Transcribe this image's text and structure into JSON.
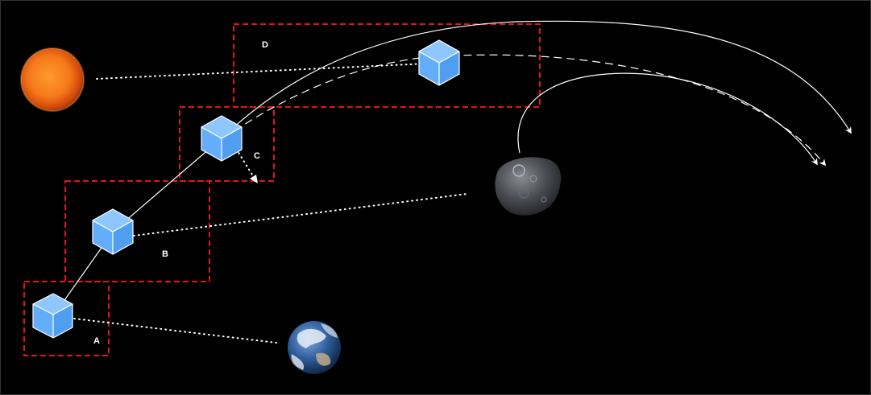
{
  "regions": [
    {
      "id": "A",
      "label": "A"
    },
    {
      "id": "B",
      "label": "B"
    },
    {
      "id": "C",
      "label": "C"
    },
    {
      "id": "D",
      "label": "D"
    }
  ],
  "bodies": {
    "sun": {
      "icon": "sun-icon"
    },
    "earth": {
      "icon": "earth-icon"
    },
    "asteroid": {
      "icon": "asteroid-icon"
    },
    "spacecraft": {
      "icon": "cube-icon"
    }
  },
  "colors": {
    "background": "#000000",
    "region_border": "#e0161c",
    "cube_front": "#62aefa",
    "cube_side": "#4f9ef0",
    "cube_top": "#8ec7ff",
    "trajectory": "#ffffff"
  }
}
